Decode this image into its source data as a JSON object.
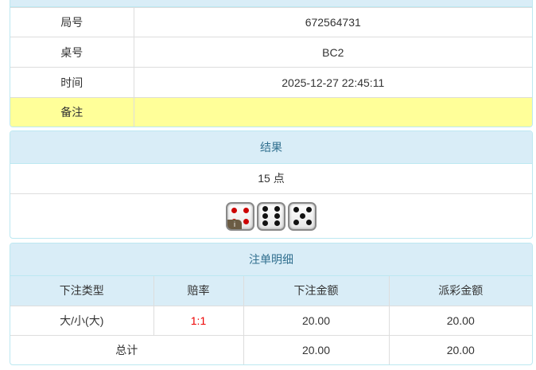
{
  "info": {
    "rows": [
      {
        "label": "局号",
        "value": "672564731"
      },
      {
        "label": "桌号",
        "value": "BC2"
      },
      {
        "label": "时间",
        "value": "2025-12-27 22:45:11"
      },
      {
        "label": "备注",
        "value": ""
      }
    ],
    "highlight_color": "#ffff99"
  },
  "result": {
    "title": "结果",
    "points": "15 点",
    "dice": [
      4,
      6,
      5
    ],
    "info_badge": "i"
  },
  "bets": {
    "title": "注单明细",
    "headers": [
      "下注类型",
      "赔率",
      "下注金额",
      "派彩金额"
    ],
    "rows": [
      {
        "type": "大/小(大)",
        "odds": "1:1",
        "amount": "20.00",
        "payout": "20.00"
      }
    ],
    "total": {
      "label": "总计",
      "amount": "20.00",
      "payout": "20.00"
    }
  }
}
